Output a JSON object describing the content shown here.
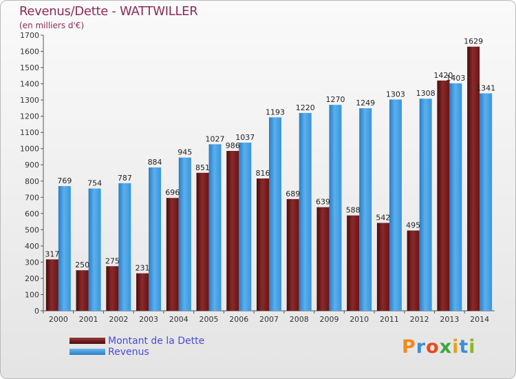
{
  "title": "Revenus/Dette - WATTWILLER",
  "subtitle": "(en milliers d'€)",
  "logo": {
    "text": "Proxiti",
    "letter_colors": [
      "#f08a1c",
      "#3a8fd8",
      "#e84a1c",
      "#3aa83a",
      "#e8a01c",
      "#3a8fd8",
      "#8ab81c"
    ]
  },
  "chart_data": {
    "type": "bar",
    "title": "Revenus/Dette - WATTWILLER",
    "ylabel": "(en milliers d'€)",
    "categories": [
      "2000",
      "2001",
      "2002",
      "2003",
      "2004",
      "2005",
      "2006",
      "2007",
      "2008",
      "2009",
      "2010",
      "2011",
      "2012",
      "2013",
      "2014"
    ],
    "series": [
      {
        "name": "Montant de la Dette",
        "color": "#7a1c1c",
        "values": [
          317,
          250,
          275,
          231,
          696,
          851,
          986,
          816,
          689,
          639,
          588,
          542,
          495,
          1420,
          1629
        ],
        "labels": [
          "317",
          "250",
          "275",
          "231",
          "696",
          "851",
          "986",
          "816",
          "689",
          "639",
          "588",
          "542",
          "495",
          "1420",
          "1629"
        ]
      },
      {
        "name": "Revenus",
        "color": "#3d9be0",
        "values": [
          769,
          754,
          787,
          884,
          945,
          1027,
          1037,
          1193,
          1220,
          1270,
          1249,
          1303,
          1308,
          1403,
          1341
        ],
        "labels": [
          "769",
          "754",
          "787",
          "884",
          "945",
          "1027",
          "1037",
          "1193",
          "1220",
          "1270",
          "1249",
          "1303",
          "1308",
          "1403",
          "1341"
        ]
      }
    ],
    "ylim": [
      0,
      1700
    ],
    "yticks": [
      "0",
      "100",
      "200",
      "300",
      "400",
      "500",
      "600",
      "700",
      "800",
      "900",
      "1000",
      "1100",
      "1200",
      "1300",
      "1400",
      "1500",
      "1600",
      "1700"
    ],
    "grid": false,
    "legend": "bottom-left"
  }
}
